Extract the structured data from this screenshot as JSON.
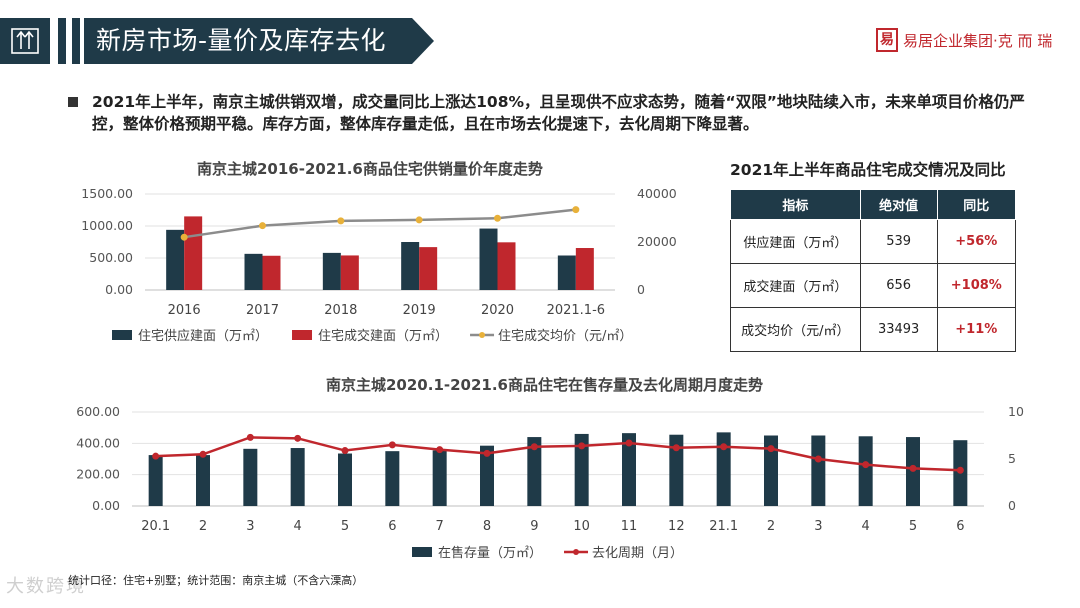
{
  "header": {
    "title": "新房市场-量价及库存去化",
    "logo_mark": "易",
    "logo_text": "易居企业集团·克 而 瑞",
    "colors": {
      "bar_dark": "#1f3a48",
      "brand_red": "#c0272d",
      "line_gray": "#8c8c8c",
      "marker_gold": "#e8b13a"
    }
  },
  "summary": "2021年上半年，南京主城供销双增，成交量同比上涨达108%，且呈现供不应求态势，随着“双限”地块陆续入市，未来单项目价格仍严控，整体价格预期平稳。库存方面，整体库存量走低，且在市场去化提速下，去化周期下降显著。",
  "chart_data": [
    {
      "type": "bar",
      "title": "南京主城2016-2021.6商品住宅供销量价年度走势",
      "categories": [
        "2016",
        "2017",
        "2018",
        "2019",
        "2020",
        "2021.1-6"
      ],
      "series": [
        {
          "name": "住宅供应建面（万㎡）",
          "kind": "bar",
          "axis": "left",
          "values": [
            940,
            565,
            580,
            750,
            960,
            539
          ]
        },
        {
          "name": "住宅成交建面（万㎡）",
          "kind": "bar",
          "axis": "left",
          "values": [
            1150,
            535,
            540,
            670,
            745,
            656
          ]
        },
        {
          "name": "住宅成交均价（元/㎡）",
          "kind": "line",
          "axis": "right",
          "values": [
            22000,
            26800,
            28800,
            29200,
            29900,
            33493
          ]
        }
      ],
      "left_axis": {
        "min": 0,
        "max": 1500,
        "ticks": [
          "0.00",
          "500.00",
          "1000.00",
          "1500.00"
        ]
      },
      "right_axis": {
        "min": 0,
        "max": 40000,
        "ticks": [
          "0",
          "20000",
          "40000"
        ]
      }
    },
    {
      "type": "bar",
      "title": "南京主城2020.1-2021.6商品住宅在售存量及去化周期月度走势",
      "categories": [
        "20.1",
        "2",
        "3",
        "4",
        "5",
        "6",
        "7",
        "8",
        "9",
        "10",
        "11",
        "12",
        "21.1",
        "2",
        "3",
        "4",
        "5",
        "6"
      ],
      "series": [
        {
          "name": "在售存量（万㎡）",
          "kind": "bar",
          "axis": "left",
          "values": [
            325,
            325,
            365,
            370,
            335,
            350,
            355,
            385,
            440,
            460,
            465,
            455,
            470,
            450,
            450,
            445,
            440,
            420
          ]
        },
        {
          "name": "去化周期（月）",
          "kind": "line",
          "axis": "right",
          "values": [
            5.3,
            5.5,
            7.3,
            7.2,
            5.9,
            6.5,
            6.0,
            5.6,
            6.3,
            6.4,
            6.7,
            6.2,
            6.3,
            6.1,
            5.0,
            4.4,
            4.0,
            3.8
          ]
        }
      ],
      "left_axis": {
        "min": 0,
        "max": 600,
        "ticks": [
          "0.00",
          "200.00",
          "400.00",
          "600.00"
        ]
      },
      "right_axis": {
        "min": 0,
        "max": 10,
        "ticks": [
          "0",
          "5",
          "10"
        ]
      }
    }
  ],
  "table": {
    "title": "2021年上半年商品住宅成交情况及同比",
    "headers": [
      "指标",
      "绝对值",
      "同比"
    ],
    "rows": [
      {
        "label": "供应建面（万㎡）",
        "value": "539",
        "yoy": "+56%"
      },
      {
        "label": "成交建面（万㎡）",
        "value": "656",
        "yoy": "+108%"
      },
      {
        "label": "成交均价（元/㎡）",
        "value": "33493",
        "yoy": "+11%"
      }
    ]
  },
  "footnote": "统计口径：住宅+别墅；统计范围：南京主城（不含六溧高）",
  "watermark": "大数跨境"
}
